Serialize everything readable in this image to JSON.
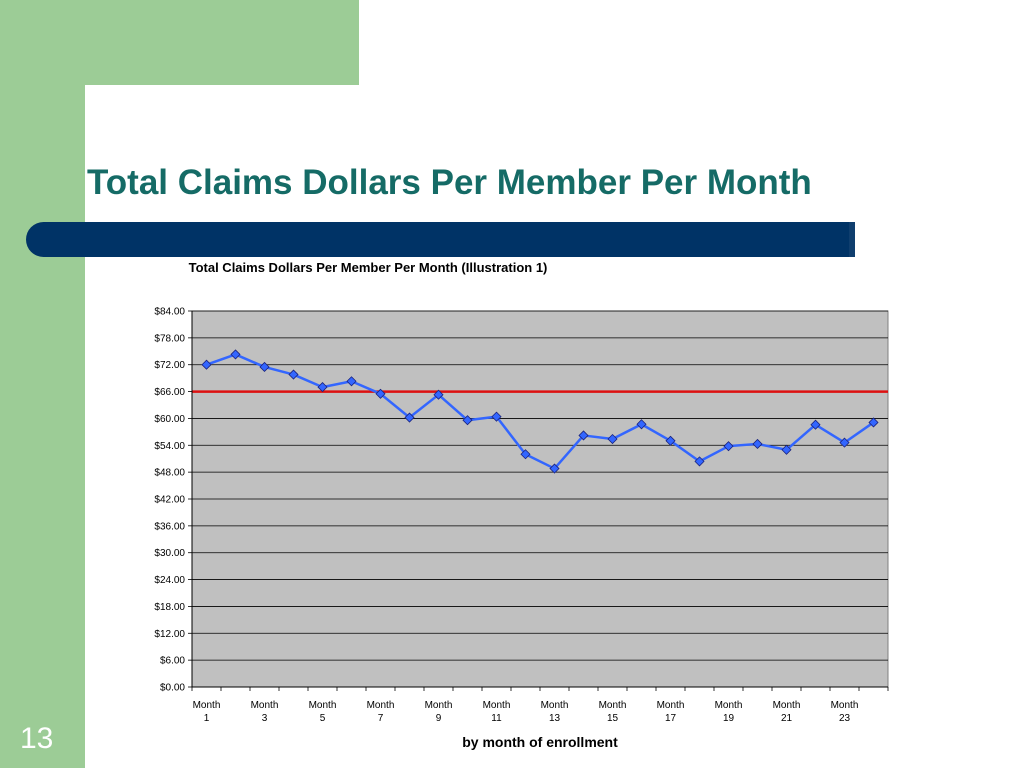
{
  "slide": {
    "title": "Total Claims Dollars Per Member Per Month",
    "number": "13",
    "colors": {
      "title": "#156b66",
      "accent_bar": "#003366",
      "side_band": "#9ccc96"
    }
  },
  "chart_data": {
    "type": "line",
    "title": "Total Claims Dollars Per Member Per Month (Illustration 1)",
    "xlabel": "by month of enrollment",
    "ylabel": "",
    "ylim": [
      0,
      84
    ],
    "yticks": [
      "$0.00",
      "$6.00",
      "$12.00",
      "$18.00",
      "$24.00",
      "$30.00",
      "$36.00",
      "$42.00",
      "$48.00",
      "$54.00",
      "$60.00",
      "$66.00",
      "$72.00",
      "$78.00",
      "$84.00"
    ],
    "ytick_values": [
      0,
      6,
      12,
      18,
      24,
      30,
      36,
      42,
      48,
      54,
      60,
      66,
      72,
      78,
      84
    ],
    "categories": [
      "Month 1",
      "Month 2",
      "Month 3",
      "Month 4",
      "Month 5",
      "Month 6",
      "Month 7",
      "Month 8",
      "Month 9",
      "Month 10",
      "Month 11",
      "Month 12",
      "Month 13",
      "Month 14",
      "Month 15",
      "Month 16",
      "Month 17",
      "Month 18",
      "Month 19",
      "Month 20",
      "Month 21",
      "Month 22",
      "Month 23",
      "Month 24"
    ],
    "xtick_labels": [
      {
        "index": 0,
        "line1": "Month",
        "line2": "1"
      },
      {
        "index": 2,
        "line1": "Month",
        "line2": "3"
      },
      {
        "index": 4,
        "line1": "Month",
        "line2": "5"
      },
      {
        "index": 6,
        "line1": "Month",
        "line2": "7"
      },
      {
        "index": 8,
        "line1": "Month",
        "line2": "9"
      },
      {
        "index": 10,
        "line1": "Month",
        "line2": "11"
      },
      {
        "index": 12,
        "line1": "Month",
        "line2": "13"
      },
      {
        "index": 14,
        "line1": "Month",
        "line2": "15"
      },
      {
        "index": 16,
        "line1": "Month",
        "line2": "17"
      },
      {
        "index": 18,
        "line1": "Month",
        "line2": "19"
      },
      {
        "index": 20,
        "line1": "Month",
        "line2": "21"
      },
      {
        "index": 22,
        "line1": "Month",
        "line2": "23"
      }
    ],
    "series": [
      {
        "values": [
          72.0,
          74.3,
          71.5,
          69.8,
          67.0,
          68.3,
          65.5,
          60.2,
          65.3,
          59.6,
          60.4,
          52.0,
          48.8,
          56.2,
          55.4,
          58.7,
          55.0,
          50.4,
          53.8,
          54.3,
          53.0,
          58.6,
          54.6,
          59.1
        ],
        "color": "#3366ff",
        "marker": "diamond"
      }
    ],
    "reference_line": {
      "value": 66.0,
      "color": "#dd1111"
    },
    "grid": true,
    "plot_background": "#c0c0c0"
  }
}
